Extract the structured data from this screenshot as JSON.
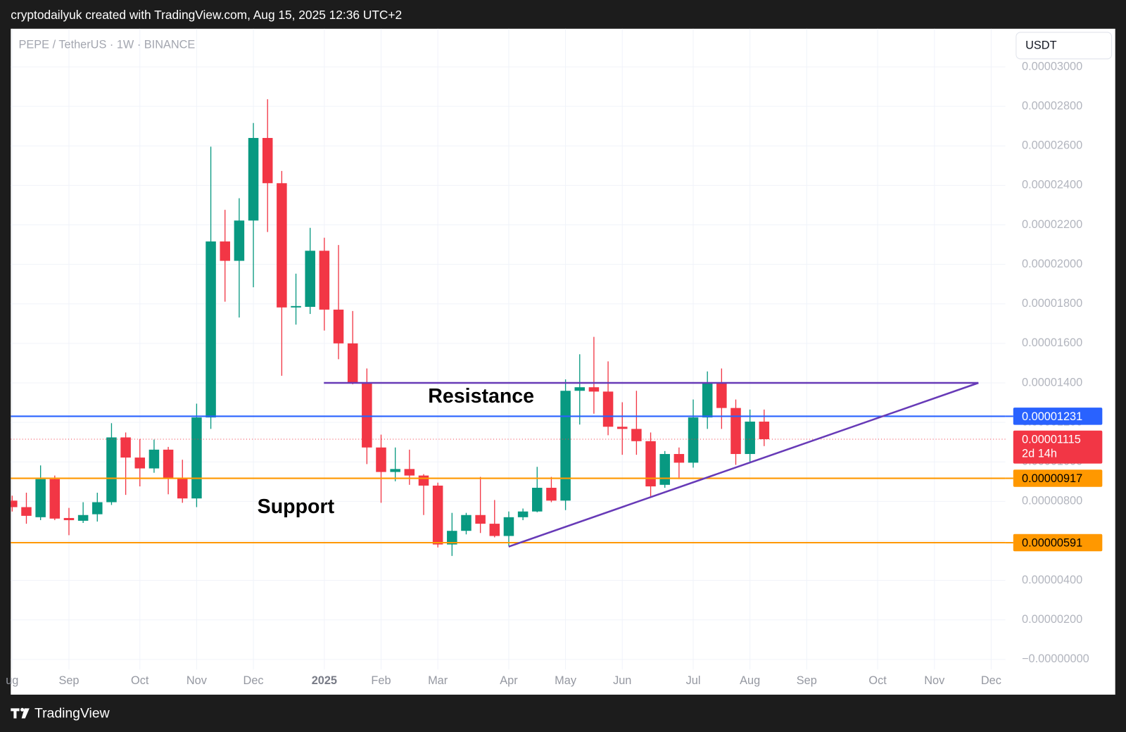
{
  "header": "cryptodailyuk created with TradingView.com, Aug 15, 2025 12:36 UTC+2",
  "brand": "TradingView",
  "chart_data": {
    "type": "candlestick",
    "symbol": "PEPE / TetherUS · 1W · BINANCE",
    "currency": "USDT",
    "up_color": "#089981",
    "down_color": "#f23645",
    "open": [
      8.04e-06,
      7.71e-06,
      7.2e-06,
      9.13e-06,
      7.16e-06,
      7.02e-06,
      7.35e-06,
      7.96e-06,
      1.124e-05,
      1.022e-05,
      9.67e-06,
      1.062e-05,
      9.16e-06,
      8.15e-06,
      1.225e-05,
      2.116e-05,
      2.018e-05,
      2.222e-05,
      2.64e-05,
      2.411e-05,
      1.782e-05,
      1.785e-05,
      2.069e-05,
      1.771e-05,
      1.6e-05,
      1.4e-05,
      1.073e-05,
      9.49e-06,
      9.64e-06,
      9.31e-06,
      8.8e-06,
      5.82e-06,
      6.51e-06,
      7.31e-06,
      6.87e-06,
      6.25e-06,
      7.2e-06,
      7.49e-06,
      8.69e-06,
      8.04e-06,
      1.36e-05,
      1.378e-05,
      1.356e-05,
      1.178e-05,
      1.167e-05,
      1.105e-05,
      8.84e-06,
      1.04e-05,
      9.96e-06,
      1.225e-05,
      1.4e-05,
      1.273e-05,
      1.04e-05,
      1.204e-05
    ],
    "high": [
      8.29e-06,
      8.44e-06,
      9.82e-06,
      9.31e-06,
      7.67e-06,
      7.96e-06,
      8.44e-06,
      1.196e-05,
      1.149e-05,
      1.116e-05,
      1.113e-05,
      1.076e-05,
      1.011e-05,
      1.295e-05,
      2.596e-05,
      2.276e-05,
      2.335e-05,
      2.716e-05,
      2.836e-05,
      2.473e-05,
      1.953e-05,
      2.185e-05,
      2.135e-05,
      2.098e-05,
      1.764e-05,
      1.473e-05,
      1.138e-05,
      1.073e-05,
      1.062e-05,
      9.38e-06,
      8.95e-06,
      7.42e-06,
      7.42e-06,
      9.24e-06,
      8.07e-06,
      7.49e-06,
      7.64e-06,
      9.75e-06,
      9.24e-06,
      1.418e-05,
      1.545e-05,
      1.633e-05,
      1.509e-05,
      1.302e-05,
      1.36e-05,
      1.149e-05,
      1.055e-05,
      1.073e-05,
      1.316e-05,
      1.458e-05,
      1.473e-05,
      1.316e-05,
      1.265e-05,
      1.265e-05
    ],
    "low": [
      7.49e-06,
      6.87e-06,
      7.05e-06,
      7.05e-06,
      6.29e-06,
      6.91e-06,
      6.98e-06,
      7.82e-06,
      8.33e-06,
      8.76e-06,
      9.45e-06,
      8.36e-06,
      7.93e-06,
      7.71e-06,
      1.167e-05,
      1.811e-05,
      1.731e-05,
      1.884e-05,
      2.164e-05,
      1.436e-05,
      1.695e-05,
      1.749e-05,
      1.665e-05,
      1.52e-05,
      1.393e-05,
      9.89e-06,
      7.93e-06,
      9.02e-06,
      8.84e-06,
      7.31e-06,
      5.67e-06,
      5.24e-06,
      6.33e-06,
      6.4e-06,
      6.18e-06,
      5.75e-06,
      7.05e-06,
      7.45e-06,
      7.96e-06,
      7.56e-06,
      1.189e-05,
      1.244e-05,
      1.135e-05,
      1.036e-05,
      1.036e-05,
      8.25e-06,
      8.69e-06,
      9.13e-06,
      9.71e-06,
      1.167e-05,
      1.167e-05,
      9.85e-06,
      9.96e-06,
      1.08e-05
    ],
    "close": [
      7.71e-06,
      7.27e-06,
      9.13e-06,
      7.13e-06,
      7.05e-06,
      7.31e-06,
      7.96e-06,
      1.124e-05,
      1.022e-05,
      9.67e-06,
      1.062e-05,
      9.16e-06,
      8.15e-06,
      1.225e-05,
      2.116e-05,
      2.018e-05,
      2.222e-05,
      2.64e-05,
      2.411e-05,
      1.782e-05,
      1.789e-05,
      2.069e-05,
      1.771e-05,
      1.6e-05,
      1.4e-05,
      1.073e-05,
      9.49e-06,
      9.64e-06,
      9.31e-06,
      8.8e-06,
      5.82e-06,
      6.51e-06,
      7.31e-06,
      6.87e-06,
      6.25e-06,
      7.2e-06,
      7.49e-06,
      8.69e-06,
      8.04e-06,
      1.36e-05,
      1.378e-05,
      1.356e-05,
      1.178e-05,
      1.167e-05,
      1.105e-05,
      8.76e-06,
      1.04e-05,
      9.96e-06,
      1.225e-05,
      1.4e-05,
      1.273e-05,
      1.04e-05,
      1.204e-05,
      1.115e-05
    ],
    "xlim": [
      -0.1,
      70
    ],
    "xticks": [
      {
        "value": 0,
        "label": "ug"
      },
      {
        "value": 4,
        "label": "Sep"
      },
      {
        "value": 9,
        "label": "Oct"
      },
      {
        "value": 13,
        "label": "Nov"
      },
      {
        "value": 17,
        "label": "Dec"
      },
      {
        "value": 22,
        "label": "2025"
      },
      {
        "value": 26,
        "label": "Feb"
      },
      {
        "value": 30,
        "label": "Mar"
      },
      {
        "value": 35,
        "label": "Apr"
      },
      {
        "value": 39,
        "label": "May"
      },
      {
        "value": 43,
        "label": "Jun"
      },
      {
        "value": 48,
        "label": "Jul"
      },
      {
        "value": 52,
        "label": "Aug"
      },
      {
        "value": 56,
        "label": "Sep"
      },
      {
        "value": 61,
        "label": "Oct"
      },
      {
        "value": 65,
        "label": "Nov"
      },
      {
        "value": 69,
        "label": "Dec"
      }
    ],
    "ylim": [
      -5.1e-07,
      3.193e-05
    ],
    "yticks": [
      {
        "value": 3e-05,
        "label": "0.00003000"
      },
      {
        "value": 2.8e-05,
        "label": "0.00002800"
      },
      {
        "value": 2.6e-05,
        "label": "0.00002600"
      },
      {
        "value": 2.4e-05,
        "label": "0.00002400"
      },
      {
        "value": 2.2e-05,
        "label": "0.00002200"
      },
      {
        "value": 2e-05,
        "label": "0.00002000"
      },
      {
        "value": 1.8e-05,
        "label": "0.00001800"
      },
      {
        "value": 1.6e-05,
        "label": "0.00001600"
      },
      {
        "value": 1.4e-05,
        "label": "0.00001400"
      },
      {
        "value": 1.2e-05,
        "label": "0.00001200"
      },
      {
        "value": 1e-05,
        "label": "0.00001000"
      },
      {
        "value": 8e-06,
        "label": "0.00000800"
      },
      {
        "value": 6e-06,
        "label": "0.00000600"
      },
      {
        "value": 4e-06,
        "label": "0.00000400"
      },
      {
        "value": 2e-06,
        "label": "0.00000200"
      },
      {
        "value": 0,
        "label": "−0.00000000"
      }
    ],
    "grid": true,
    "levels": [
      {
        "value": 1.231e-05,
        "color": "#2962ff"
      },
      {
        "value": 9.17e-06,
        "color": "#ff9800"
      },
      {
        "value": 5.91e-06,
        "color": "#ff9800"
      }
    ],
    "last_price": 1.115e-05,
    "countdown": "2d 14h",
    "last_price_color": "#f23645",
    "trend_lines": [
      {
        "color": "#673ab7",
        "x": [
          21.97,
          68.1
        ],
        "y": [
          1.4e-05,
          1.4e-05
        ]
      },
      {
        "color": "#673ab7",
        "x": [
          34.99,
          68.1
        ],
        "y": [
          5.71e-06,
          1.4e-05
        ]
      }
    ],
    "annotations": [
      "Resistance",
      "Support"
    ]
  }
}
